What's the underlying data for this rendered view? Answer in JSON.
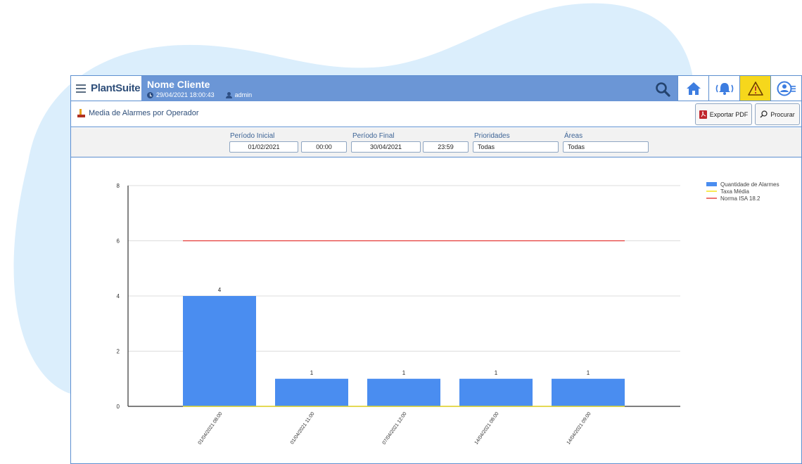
{
  "brand": {
    "name": "PlantSuite"
  },
  "header": {
    "client": "Nome Cliente",
    "datetime": "29/04/2021 18:00:43",
    "user": "admin"
  },
  "icons": {
    "menu": "hamburger-icon",
    "search": "search-icon",
    "home": "home-icon",
    "alarm": "alarm-bell-icon",
    "warning": "warning-icon",
    "profile": "user-menu-icon",
    "report": "report-icon",
    "pdf": "pdf-icon"
  },
  "colors": {
    "accent": "#6b96d6",
    "bar": "#4a8df0",
    "norm": "#e53935",
    "avg": "#f4e10c",
    "warning": "#f6d71c"
  },
  "report": {
    "title": "Media de Alarmes por Operador"
  },
  "toolbar": {
    "export_label": "Exportar PDF",
    "search_label": "Procurar"
  },
  "filters": {
    "start_label": "Período Inicial",
    "start_date": "01/02/2021",
    "start_time": "00:00",
    "end_label": "Período Final",
    "end_date": "30/04/2021",
    "end_time": "23:59",
    "priority_label": "Prioridades",
    "priority_value": "Todas",
    "areas_label": "Áreas",
    "areas_value": "Todas"
  },
  "chart_data": {
    "type": "bar",
    "categories": [
      "01/04/2021 08:00",
      "01/04/2021 11:00",
      "07/04/2021 12:00",
      "14/04/2021 08:00",
      "14/04/2021 09:00"
    ],
    "series": [
      {
        "name": "Quantidade de Alarmes",
        "type": "bar",
        "values": [
          4,
          1,
          1,
          1,
          1
        ]
      },
      {
        "name": "Taxa Média",
        "type": "line",
        "values": [
          0,
          0,
          0,
          0,
          0
        ]
      },
      {
        "name": "Norma ISA 18.2",
        "type": "line",
        "values": [
          6,
          6,
          6,
          6,
          6
        ]
      }
    ],
    "data_labels": [
      "4",
      "1",
      "1",
      "1",
      "1"
    ],
    "y_ticks": [
      "0",
      "2",
      "4",
      "6",
      "8"
    ],
    "ylim": [
      0,
      8
    ],
    "grid": true,
    "legend": "top-right"
  }
}
